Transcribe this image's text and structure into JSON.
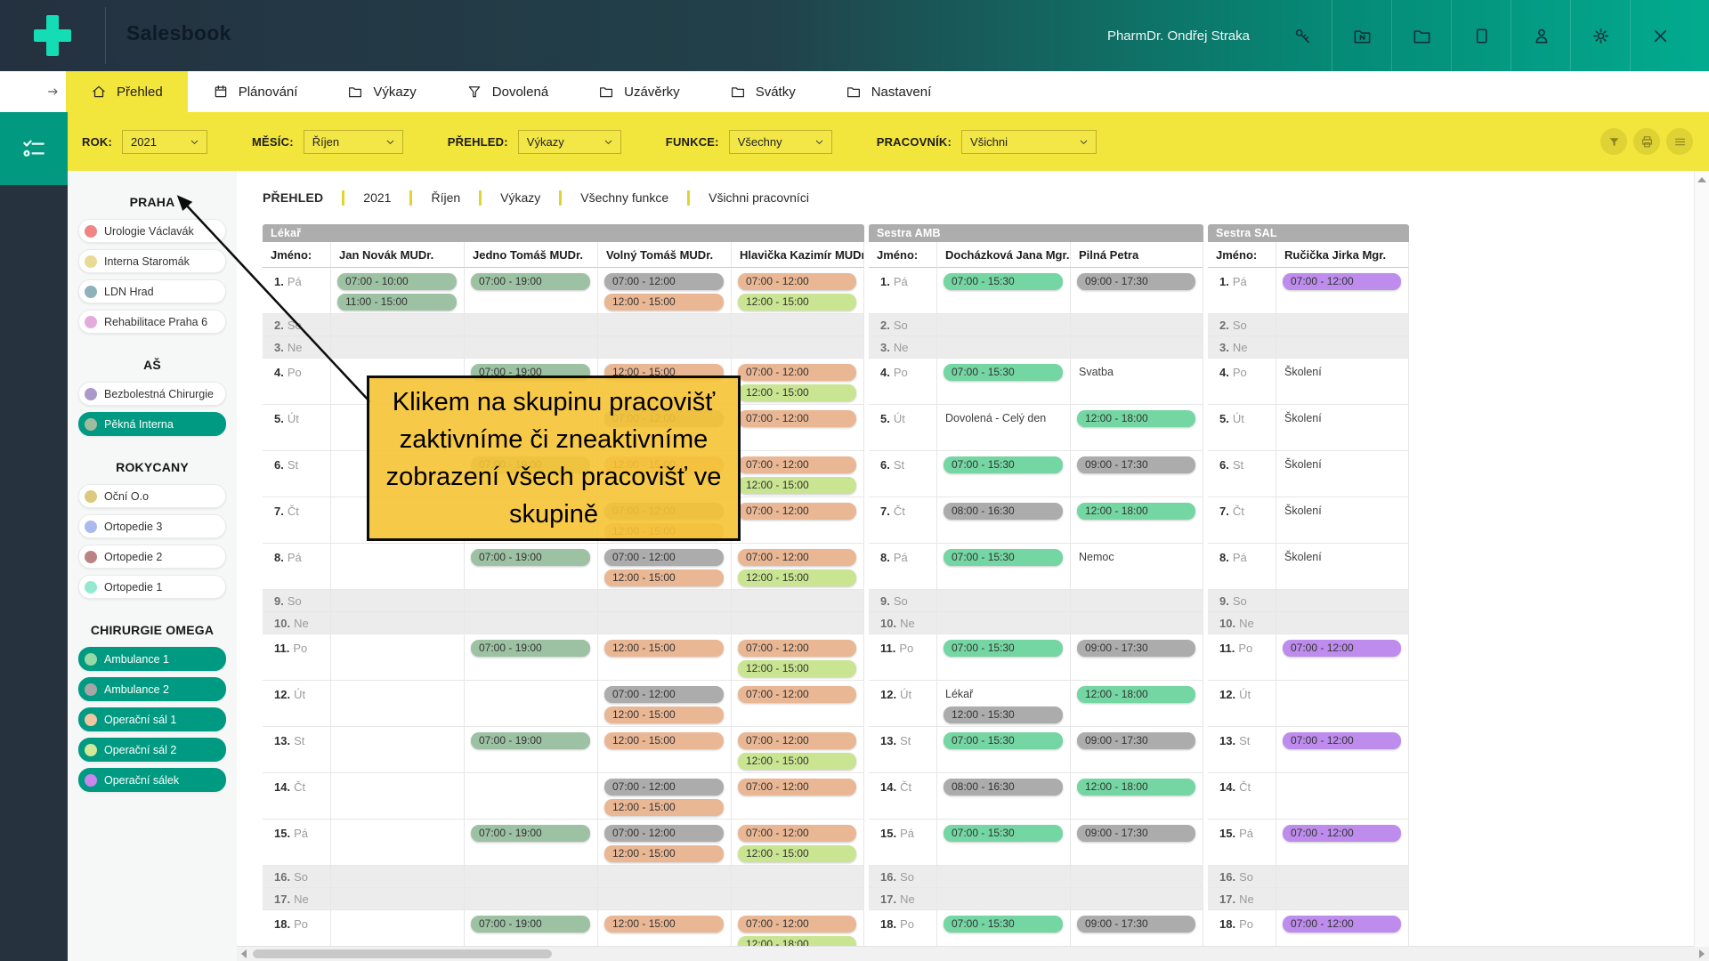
{
  "header": {
    "title": "Salesbook",
    "user": "PharmDr. Ondřej Straka",
    "icons": [
      {
        "name": "key-icon"
      },
      {
        "name": "folder-n-icon"
      },
      {
        "name": "folder-icon"
      },
      {
        "name": "box-icon"
      },
      {
        "name": "user-icon"
      },
      {
        "name": "gear-icon"
      },
      {
        "name": "close-icon"
      }
    ]
  },
  "tabs": [
    {
      "label": "Přehled",
      "icon": "home-icon",
      "active": true
    },
    {
      "label": "Plánování",
      "icon": "calendar-icon",
      "active": false
    },
    {
      "label": "Výkazy",
      "icon": "folder-icon",
      "active": false
    },
    {
      "label": "Dovolená",
      "icon": "funnel-icon",
      "active": false
    },
    {
      "label": "Uzávěrky",
      "icon": "folder-icon",
      "active": false
    },
    {
      "label": "Svátky",
      "icon": "folder-icon",
      "active": false
    },
    {
      "label": "Nastavení",
      "icon": "folder-icon",
      "active": false
    }
  ],
  "filters": [
    {
      "label": "ROK:",
      "value": "2021"
    },
    {
      "label": "MĚSÍC:",
      "value": "Říjen"
    },
    {
      "label": "PŘEHLED:",
      "value": "Výkazy"
    },
    {
      "label": "FUNKCE:",
      "value": "Všechny"
    },
    {
      "label": "PRACOVNÍK:",
      "value": "Všichni"
    }
  ],
  "filter_buttons": [
    {
      "name": "filter-icon"
    },
    {
      "name": "print-icon"
    },
    {
      "name": "menu-icon"
    }
  ],
  "sidebar": {
    "groups": [
      {
        "name": "PRAHA",
        "items": [
          {
            "label": "Urologie Václavák",
            "dot": "#ef8585",
            "active": false
          },
          {
            "label": "Interna Staromák",
            "dot": "#e9da96",
            "active": false
          },
          {
            "label": "LDN Hrad",
            "dot": "#8fb2ba",
            "active": false
          },
          {
            "label": "Rehabilitace Praha 6",
            "dot": "#e3abdb",
            "active": false
          }
        ]
      },
      {
        "name": "AŠ",
        "items": [
          {
            "label": "Bezbolestná Chirurgie",
            "dot": "#a99aca",
            "active": false
          },
          {
            "label": "Pěkná Interna",
            "dot": "#9fbc9f",
            "active": true
          }
        ]
      },
      {
        "name": "ROKYCANY",
        "items": [
          {
            "label": "Oční O.o",
            "dot": "#dbc97e",
            "active": false
          },
          {
            "label": "Ortopedie 3",
            "dot": "#aab9f0",
            "active": false
          },
          {
            "label": "Ortopedie 2",
            "dot": "#bb8383",
            "active": false
          },
          {
            "label": "Ortopedie 1",
            "dot": "#93e9cf",
            "active": false
          }
        ]
      },
      {
        "name": "CHIRURGIE OMEGA",
        "items": [
          {
            "label": "Ambulance 1",
            "dot": "#97d8a7",
            "active": true
          },
          {
            "label": "Ambulance 2",
            "dot": "#a6a6a6",
            "active": true
          },
          {
            "label": "Operační sál 1",
            "dot": "#efc5a2",
            "active": true
          },
          {
            "label": "Operační sál 2",
            "dot": "#d2e898",
            "active": true
          },
          {
            "label": "Operační sálek",
            "dot": "#c787ec",
            "active": true
          }
        ]
      }
    ]
  },
  "breadcrumb": [
    "PŘEHLED",
    "2021",
    "Říjen",
    "Výkazy",
    "Všechny funkce",
    "Všichni pracovníci"
  ],
  "schedule": {
    "name_label": "Jméno:",
    "days": [
      [
        "1.",
        "Pá"
      ],
      [
        "2.",
        "So"
      ],
      [
        "3.",
        "Ne"
      ],
      [
        "4.",
        "Po"
      ],
      [
        "5.",
        "Út"
      ],
      [
        "6.",
        "St"
      ],
      [
        "7.",
        "Čt"
      ],
      [
        "8.",
        "Pá"
      ],
      [
        "9.",
        "So"
      ],
      [
        "10.",
        "Ne"
      ],
      [
        "11.",
        "Po"
      ],
      [
        "12.",
        "Út"
      ],
      [
        "13.",
        "St"
      ],
      [
        "14.",
        "Čt"
      ],
      [
        "15.",
        "Pá"
      ],
      [
        "16.",
        "So"
      ],
      [
        "17.",
        "Ne"
      ],
      [
        "18.",
        "Po"
      ]
    ],
    "weekend_days": [
      2,
      3,
      9,
      10,
      16,
      17
    ],
    "badge_colors": {
      "sage": "#9dc2a3",
      "mint": "#74d6a2",
      "gray": "#acacac",
      "salmon": "#eab795",
      "lime": "#c9e591",
      "purple": "#bd8ced"
    },
    "sections": [
      {
        "title": "Lékař",
        "people": [
          "Jan Novák MUDr.",
          "Jedno Tomáš MUDr.",
          "Volný Tomáš MUDr.",
          "Hlavička Kazimír MUDr."
        ],
        "entries": {
          "1": [
            [
              [
                "07:00 - 10:00",
                "sage"
              ],
              [
                "11:00 - 15:00",
                "sage"
              ]
            ],
            [
              [
                "07:00 - 19:00",
                "sage"
              ]
            ],
            [
              [
                "07:00 - 12:00",
                "gray"
              ],
              [
                "12:00 - 15:00",
                "salmon"
              ]
            ],
            [
              [
                "07:00 - 12:00",
                "salmon"
              ],
              [
                "12:00 - 15:00",
                "lime"
              ]
            ]
          ],
          "4": [
            [],
            [
              [
                "07:00 - 19:00",
                "sage"
              ]
            ],
            [
              [
                "12:00 - 15:00",
                "salmon"
              ]
            ],
            [
              [
                "07:00 - 12:00",
                "salmon"
              ],
              [
                "12:00 - 15:00",
                "lime"
              ]
            ]
          ],
          "5": [
            [],
            [],
            [
              [
                "07:00 - 12:00",
                "gray"
              ]
            ],
            [
              [
                "07:00 - 12:00",
                "salmon"
              ]
            ]
          ],
          "6": [
            [],
            [
              [
                "07:00 - 19:00",
                "sage"
              ]
            ],
            [
              [
                "12:00 - 15:00",
                "salmon"
              ]
            ],
            [
              [
                "07:00 - 12:00",
                "salmon"
              ],
              [
                "12:00 - 15:00",
                "lime"
              ]
            ]
          ],
          "7": [
            [],
            [],
            [
              [
                "07:00 - 12:00",
                "gray"
              ],
              [
                "12:00 - 15:00",
                "salmon"
              ]
            ],
            [
              [
                "07:00 - 12:00",
                "salmon"
              ]
            ]
          ],
          "8": [
            [],
            [
              [
                "07:00 - 19:00",
                "sage"
              ]
            ],
            [
              [
                "07:00 - 12:00",
                "gray"
              ],
              [
                "12:00 - 15:00",
                "salmon"
              ]
            ],
            [
              [
                "07:00 - 12:00",
                "salmon"
              ],
              [
                "12:00 - 15:00",
                "lime"
              ]
            ]
          ],
          "11": [
            [],
            [
              [
                "07:00 - 19:00",
                "sage"
              ]
            ],
            [
              [
                "12:00 - 15:00",
                "salmon"
              ]
            ],
            [
              [
                "07:00 - 12:00",
                "salmon"
              ],
              [
                "12:00 - 15:00",
                "lime"
              ]
            ]
          ],
          "12": [
            [],
            [],
            [
              [
                "07:00 - 12:00",
                "gray"
              ],
              [
                "12:00 - 15:00",
                "salmon"
              ]
            ],
            [
              [
                "07:00 - 12:00",
                "salmon"
              ]
            ]
          ],
          "13": [
            [],
            [
              [
                "07:00 - 19:00",
                "sage"
              ]
            ],
            [
              [
                "12:00 - 15:00",
                "salmon"
              ]
            ],
            [
              [
                "07:00 - 12:00",
                "salmon"
              ],
              [
                "12:00 - 15:00",
                "lime"
              ]
            ]
          ],
          "14": [
            [],
            [],
            [
              [
                "07:00 - 12:00",
                "gray"
              ],
              [
                "12:00 - 15:00",
                "salmon"
              ]
            ],
            [
              [
                "07:00 - 12:00",
                "salmon"
              ]
            ]
          ],
          "15": [
            [],
            [
              [
                "07:00 - 19:00",
                "sage"
              ]
            ],
            [
              [
                "07:00 - 12:00",
                "gray"
              ],
              [
                "12:00 - 15:00",
                "salmon"
              ]
            ],
            [
              [
                "07:00 - 12:00",
                "salmon"
              ],
              [
                "12:00 - 15:00",
                "lime"
              ]
            ]
          ],
          "18": [
            [],
            [
              [
                "07:00 - 19:00",
                "sage"
              ]
            ],
            [
              [
                "12:00 - 15:00",
                "salmon"
              ]
            ],
            [
              [
                "07:00 - 12:00",
                "salmon"
              ],
              [
                "12:00 - 18:00",
                "lime"
              ]
            ]
          ]
        }
      },
      {
        "title": "Sestra AMB",
        "people": [
          "Docházková Jana Mgr.",
          "Pilná Petra"
        ],
        "entries": {
          "1": [
            [
              [
                "07:00 - 15:30",
                "mint"
              ]
            ],
            [
              [
                "09:00 - 17:30",
                "gray"
              ]
            ]
          ],
          "4": [
            [
              [
                "07:00 - 15:30",
                "mint"
              ]
            ],
            [
              [
                "Svatba",
                "text"
              ]
            ]
          ],
          "5": [
            [
              [
                "Dovolená - Celý den",
                "text"
              ]
            ],
            [
              [
                "12:00 - 18:00",
                "mint"
              ]
            ]
          ],
          "6": [
            [
              [
                "07:00 - 15:30",
                "mint"
              ]
            ],
            [
              [
                "09:00 - 17:30",
                "gray"
              ]
            ]
          ],
          "7": [
            [
              [
                "08:00 - 16:30",
                "gray"
              ]
            ],
            [
              [
                "12:00 - 18:00",
                "mint"
              ]
            ]
          ],
          "8": [
            [
              [
                "07:00 - 15:30",
                "mint"
              ]
            ],
            [
              [
                "Nemoc",
                "text"
              ]
            ]
          ],
          "11": [
            [
              [
                "07:00 - 15:30",
                "mint"
              ]
            ],
            [
              [
                "09:00 - 17:30",
                "gray"
              ]
            ]
          ],
          "12": [
            [
              [
                "Lékař",
                "text"
              ],
              [
                "12:00 - 15:30",
                "gray"
              ]
            ],
            [
              [
                "12:00 - 18:00",
                "mint"
              ]
            ]
          ],
          "13": [
            [
              [
                "07:00 - 15:30",
                "mint"
              ]
            ],
            [
              [
                "09:00 - 17:30",
                "gray"
              ]
            ]
          ],
          "14": [
            [
              [
                "08:00 - 16:30",
                "gray"
              ]
            ],
            [
              [
                "12:00 - 18:00",
                "mint"
              ]
            ]
          ],
          "15": [
            [
              [
                "07:00 - 15:30",
                "mint"
              ]
            ],
            [
              [
                "09:00 - 17:30",
                "gray"
              ]
            ]
          ],
          "18": [
            [
              [
                "07:00 - 15:30",
                "mint"
              ]
            ],
            [
              [
                "09:00 - 17:30",
                "gray"
              ]
            ]
          ]
        }
      },
      {
        "title": "Sestra SAL",
        "people": [
          "Ručička Jirka Mgr."
        ],
        "entries": {
          "1": [
            [
              [
                "07:00 - 12:00",
                "purple"
              ]
            ]
          ],
          "4": [
            [
              [
                "Školení",
                "text"
              ]
            ]
          ],
          "5": [
            [
              [
                "Školení",
                "text"
              ]
            ]
          ],
          "6": [
            [
              [
                "Školení",
                "text"
              ]
            ]
          ],
          "7": [
            [
              [
                "Školení",
                "text"
              ]
            ]
          ],
          "8": [
            [
              [
                "Školení",
                "text"
              ]
            ]
          ],
          "11": [
            [
              [
                "07:00 - 12:00",
                "purple"
              ]
            ]
          ],
          "13": [
            [
              [
                "07:00 - 12:00",
                "purple"
              ]
            ]
          ],
          "15": [
            [
              [
                "07:00 - 12:00",
                "purple"
              ]
            ]
          ],
          "18": [
            [
              [
                "07:00 - 12:00",
                "purple"
              ]
            ]
          ]
        }
      }
    ]
  },
  "tooltip": {
    "text": "Klikem na skupinu pracovišť zaktivníme či zneaktivníme zobrazení všech pracovišť ve skupině"
  },
  "colors": {
    "accent_teal": "#009a82",
    "bar_yellow": "#f2e53c",
    "tooltip_amber": "#f6c335",
    "header_dark": "#243140",
    "header_teal": "#02ab8f"
  }
}
